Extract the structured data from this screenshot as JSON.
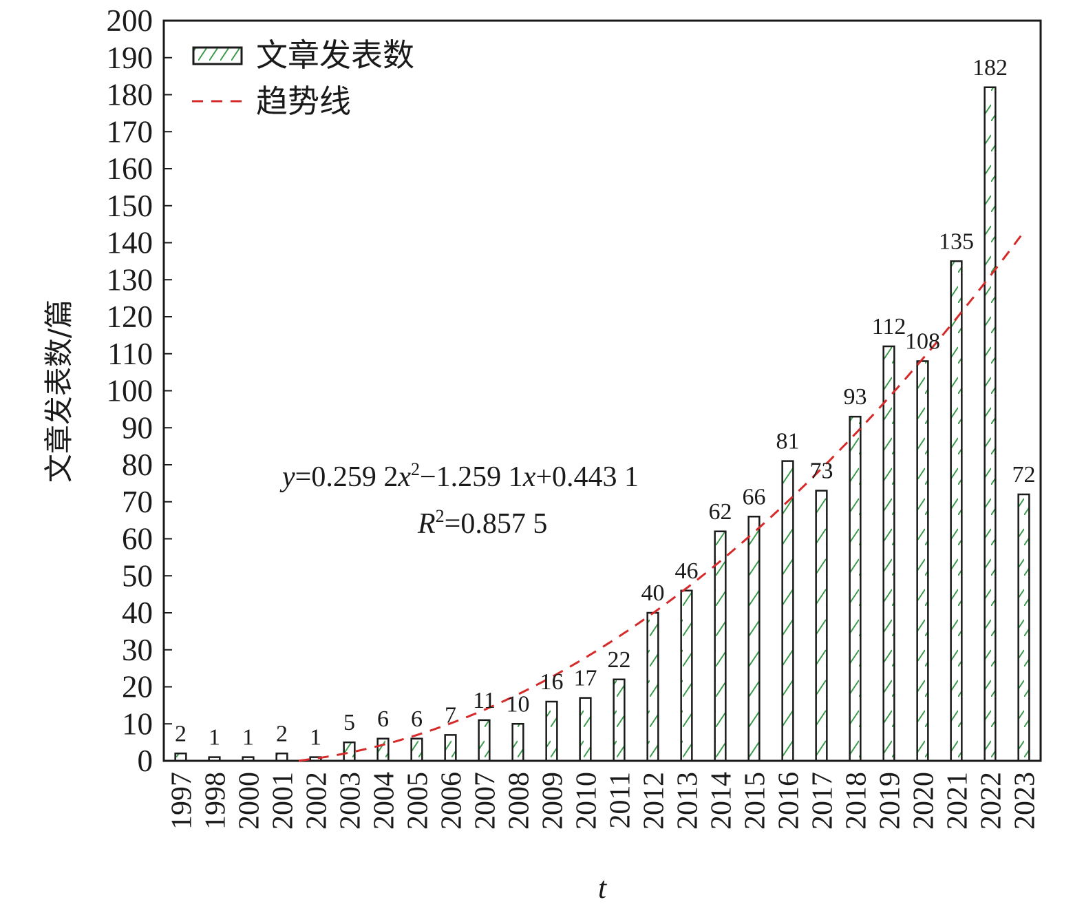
{
  "chart_data": {
    "type": "bar",
    "categories": [
      "1997",
      "1998",
      "2000",
      "2001",
      "2002",
      "2003",
      "2004",
      "2005",
      "2006",
      "2007",
      "2008",
      "2009",
      "2010",
      "2011",
      "2012",
      "2013",
      "2014",
      "2015",
      "2016",
      "2017",
      "2018",
      "2019",
      "2020",
      "2021",
      "2022",
      "2023"
    ],
    "series": [
      {
        "name": "文章发表数",
        "values": [
          2,
          1,
          1,
          2,
          1,
          5,
          6,
          6,
          7,
          11,
          10,
          16,
          17,
          22,
          40,
          46,
          62,
          66,
          81,
          73,
          93,
          112,
          108,
          135,
          182,
          72
        ]
      }
    ],
    "trendline": {
      "name": "趋势线",
      "type": "polynomial",
      "coefficients": {
        "a": 0.2592,
        "b": -1.2591,
        "c": 0.4431
      },
      "r_squared": 0.8575,
      "equation_parts": [
        "y",
        "=0.259 2",
        "x",
        "2",
        "−1.259 1",
        "x",
        "+0.443 1"
      ],
      "r2_parts": [
        "R",
        "2",
        "=0.857 5"
      ],
      "color": "#d62a2a"
    },
    "ylabel": "文章发表数/篇",
    "xlabel": "t",
    "ylim": [
      0,
      200
    ],
    "yticks": [
      0,
      10,
      20,
      30,
      40,
      50,
      60,
      70,
      80,
      90,
      100,
      110,
      120,
      130,
      140,
      150,
      160,
      170,
      180,
      190,
      200
    ],
    "grid": false,
    "legend_position": "top-left",
    "bar_hatch_color": "#3a9a4a",
    "bar_fill": "#ffffff"
  }
}
